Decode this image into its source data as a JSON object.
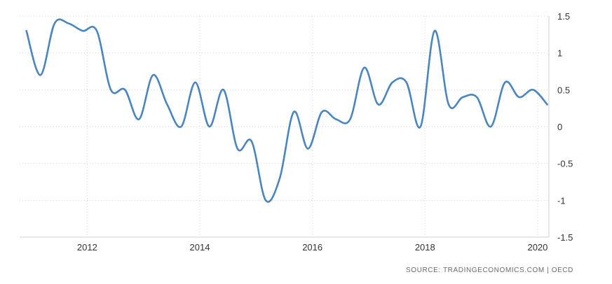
{
  "source": "SOURCE: TRADINGECONOMICS.COM | OECD",
  "chart_data": {
    "type": "line",
    "title": "",
    "xlabel": "",
    "ylabel": "",
    "x_ticks": [
      2012,
      2014,
      2016,
      2018,
      2020
    ],
    "y_ticks": [
      1.5,
      1,
      0.5,
      0,
      -0.5,
      -1,
      -1.5
    ],
    "y_tick_labels": [
      "1.5",
      "1",
      "0.5",
      "0",
      "-0.5",
      "-1",
      "-1.5"
    ],
    "x_tick_labels": [
      "2012",
      "2014",
      "2016",
      "2018",
      "2020"
    ],
    "xlim": [
      2010.8,
      2020.2
    ],
    "ylim": [
      -1.5,
      1.5
    ],
    "y_axis_position": "right",
    "grid": true,
    "series_color": "#4a86bd",
    "series": [
      {
        "x": [
          2010.92,
          2011.17,
          2011.42,
          2011.67,
          2011.92,
          2012.17,
          2012.42,
          2012.67,
          2012.92,
          2013.17,
          2013.42,
          2013.67,
          2013.92,
          2014.17,
          2014.42,
          2014.67,
          2014.92,
          2015.17,
          2015.42,
          2015.67,
          2015.92,
          2016.17,
          2016.42,
          2016.67,
          2016.92,
          2017.17,
          2017.42,
          2017.67,
          2017.92,
          2018.17,
          2018.42,
          2018.67,
          2018.92,
          2019.17,
          2019.42,
          2019.67,
          2019.92,
          2020.17
        ],
        "values": [
          1.3,
          0.7,
          1.4,
          1.4,
          1.3,
          1.3,
          0.5,
          0.5,
          0.1,
          0.7,
          0.3,
          0.0,
          0.6,
          0.0,
          0.5,
          -0.3,
          -0.2,
          -1.0,
          -0.7,
          0.2,
          -0.3,
          0.2,
          0.1,
          0.1,
          0.8,
          0.3,
          0.6,
          0.6,
          0.0,
          1.3,
          0.3,
          0.4,
          0.4,
          0.0,
          0.6,
          0.4,
          0.5,
          0.3
        ]
      }
    ]
  }
}
